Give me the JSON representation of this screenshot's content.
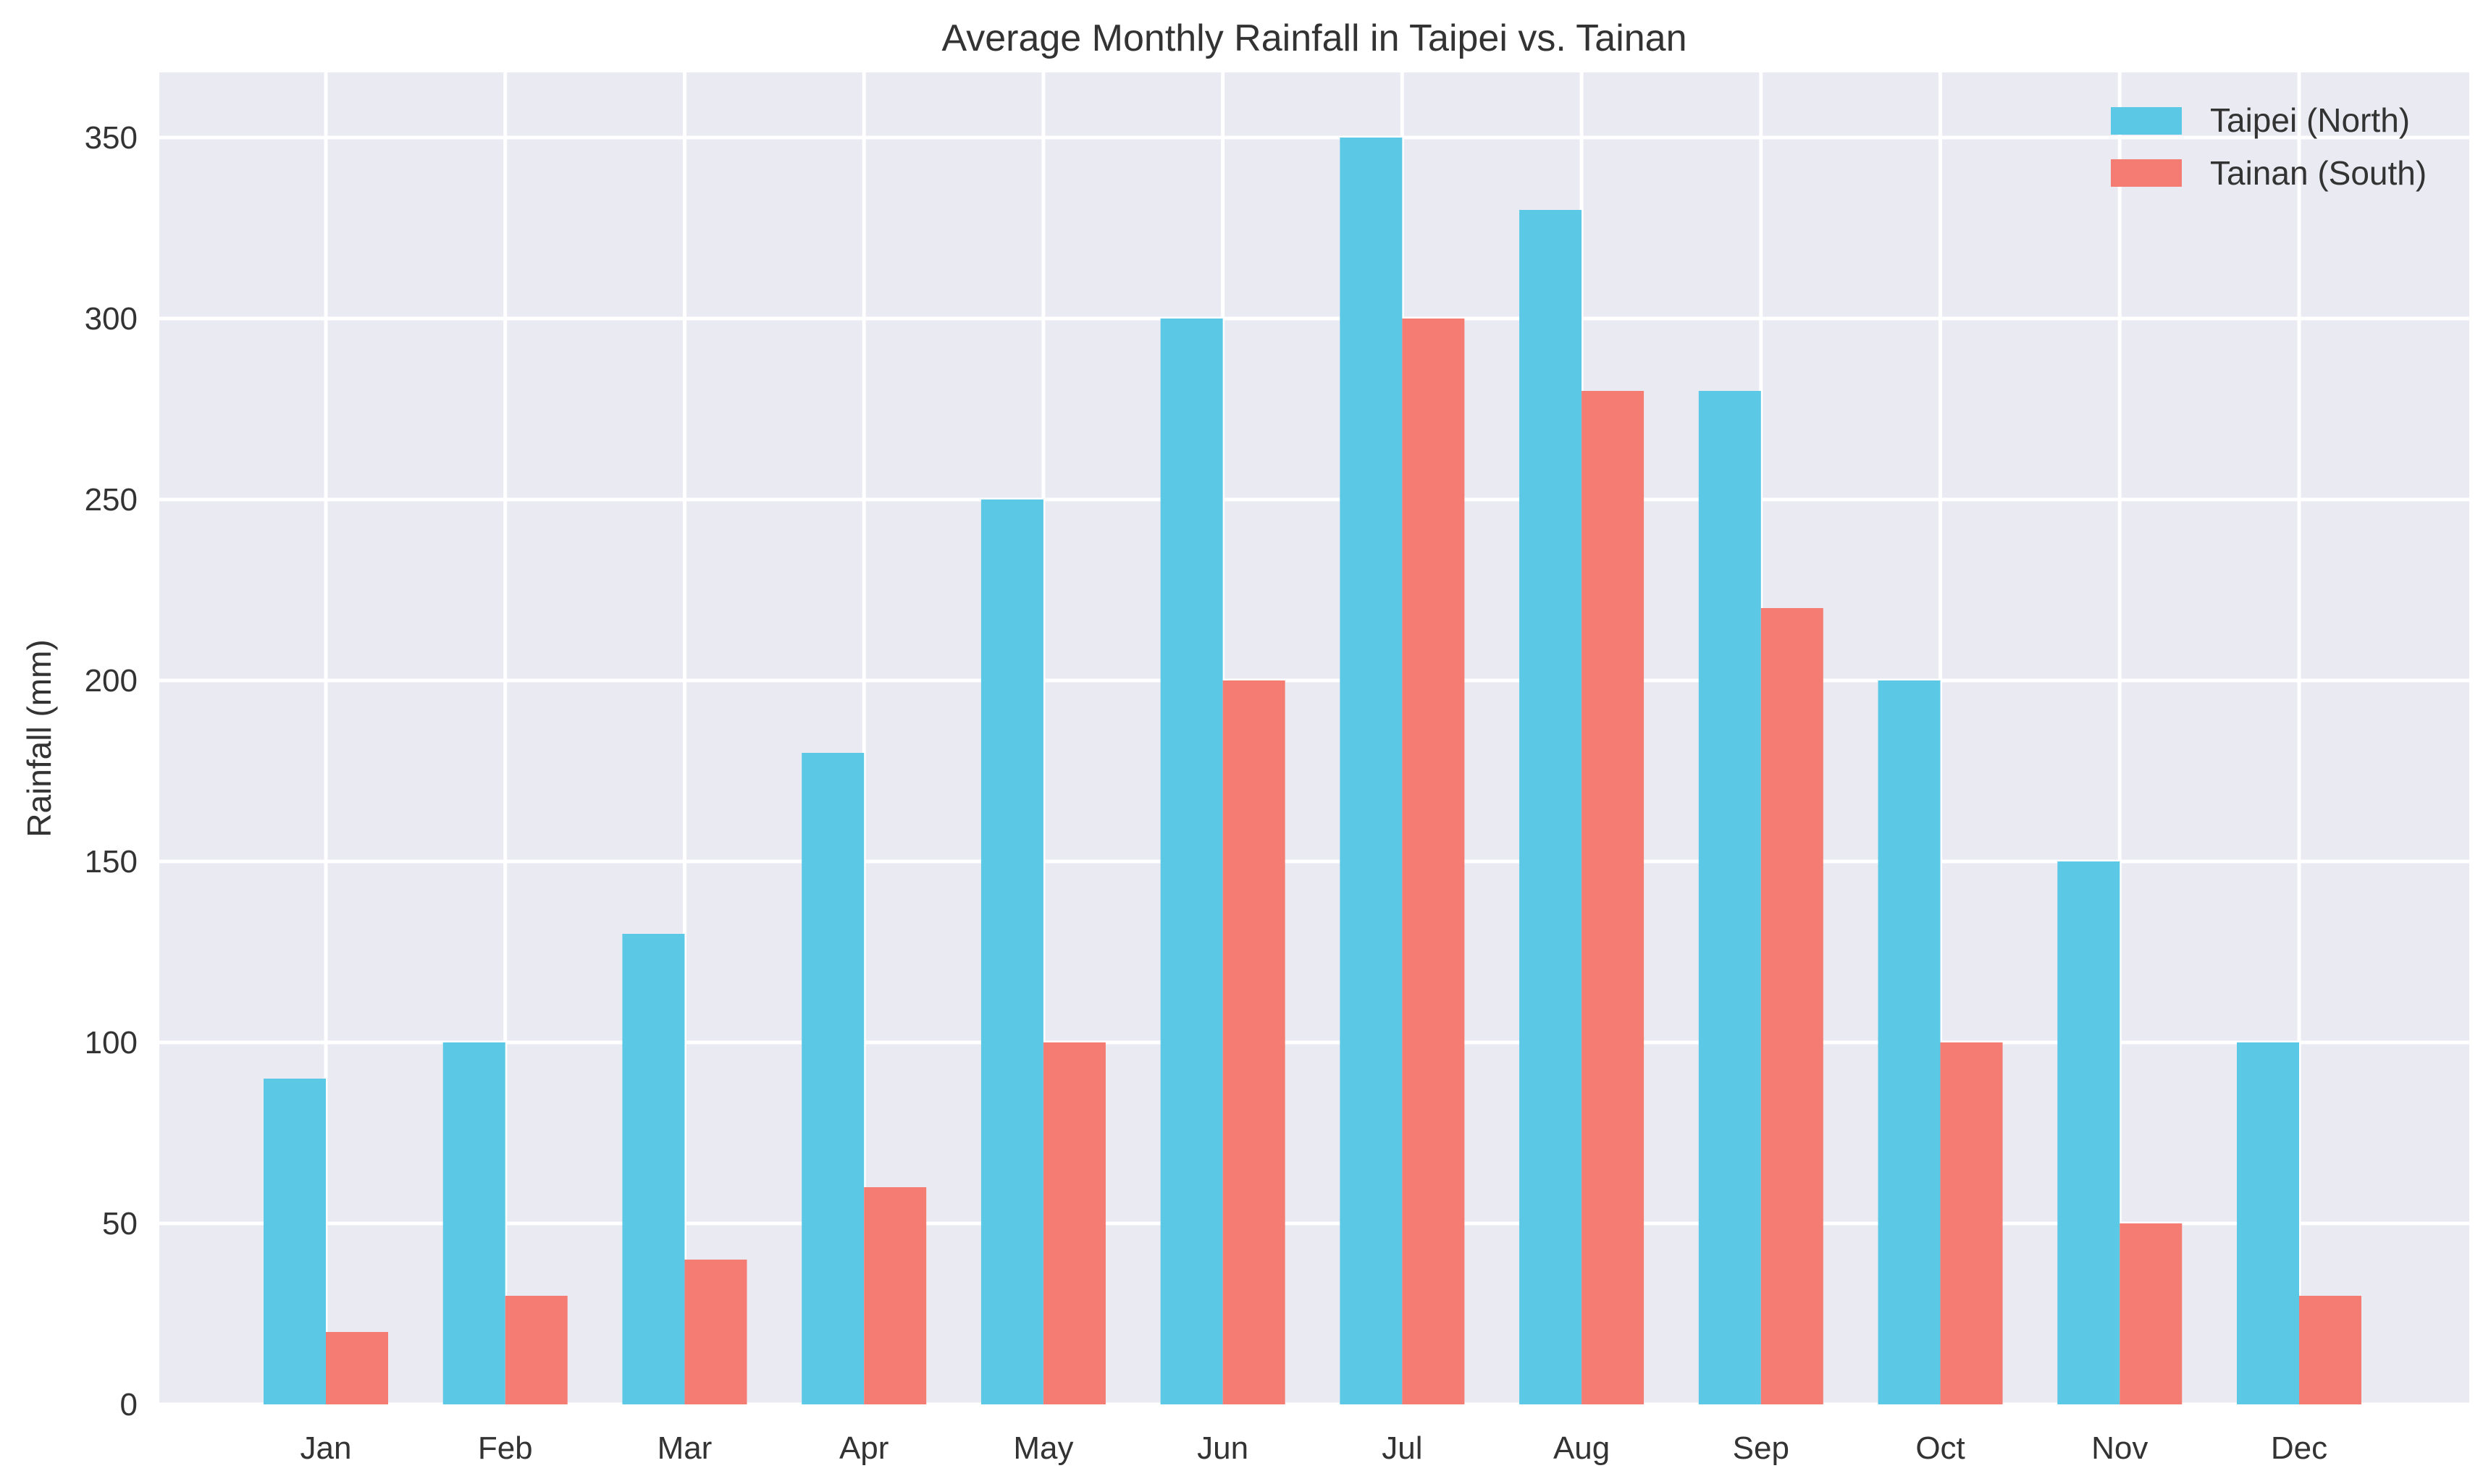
{
  "chart_data": {
    "type": "bar",
    "title": "Average Monthly Rainfall in Taipei vs. Tainan",
    "xlabel": "",
    "ylabel": "Rainfall (mm)",
    "ylim": [
      0,
      368
    ],
    "yticks": [
      "0",
      "50",
      "100",
      "150",
      "200",
      "250",
      "300",
      "350"
    ],
    "categories": [
      "Jan",
      "Feb",
      "Mar",
      "Apr",
      "May",
      "Jun",
      "Jul",
      "Aug",
      "Sep",
      "Oct",
      "Nov",
      "Dec"
    ],
    "series": [
      {
        "name": "Taipei (North)",
        "color": "#5bc8e6",
        "values": [
          90,
          100,
          130,
          180,
          250,
          300,
          350,
          330,
          280,
          200,
          150,
          100
        ]
      },
      {
        "name": "Tainan (South)",
        "color": "#f47c72",
        "values": [
          20,
          30,
          40,
          60,
          100,
          200,
          300,
          280,
          220,
          100,
          50,
          30
        ]
      }
    ],
    "grid": true,
    "background_color": "#eaeaf2",
    "legend_position": "top-right"
  }
}
